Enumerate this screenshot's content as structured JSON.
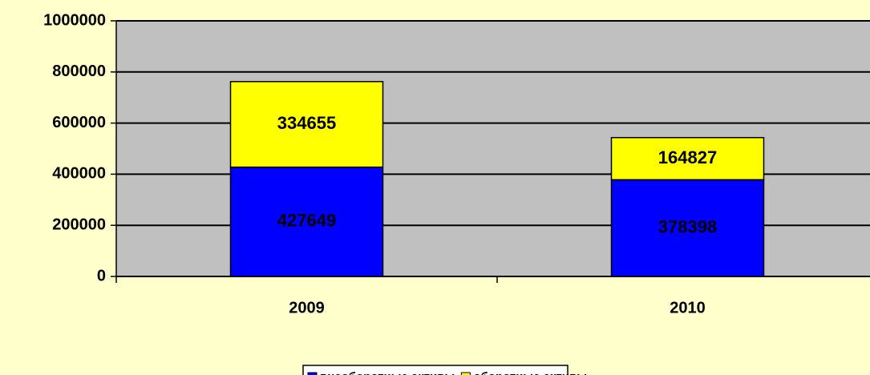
{
  "chart_data": {
    "type": "bar",
    "stacked": true,
    "categories": [
      "2009",
      "2010"
    ],
    "series": [
      {
        "name": "внеоборотные активы",
        "color": "#0000ff",
        "values": [
          427649,
          378398
        ]
      },
      {
        "name": "оборотные активы",
        "color": "#ffff00",
        "values": [
          334655,
          164827
        ]
      }
    ],
    "ylim": [
      0,
      1000000
    ],
    "yticks": [
      0,
      200000,
      400000,
      600000,
      800000,
      1000000
    ],
    "grid": true
  }
}
